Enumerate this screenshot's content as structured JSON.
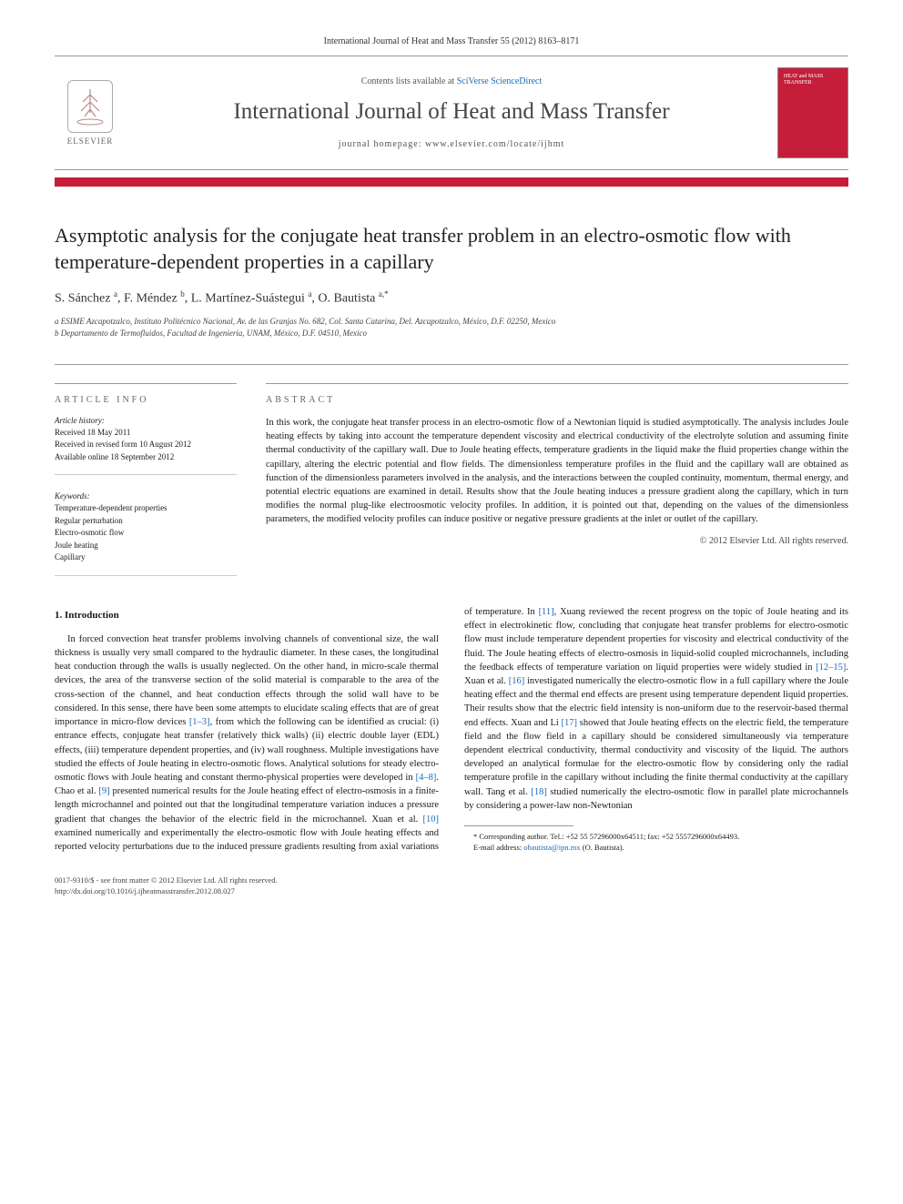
{
  "journal_ref": "International Journal of Heat and Mass Transfer 55 (2012) 8163–8171",
  "header": {
    "contents_prefix": "Contents lists available at ",
    "contents_link": "SciVerse ScienceDirect",
    "journal_name": "International Journal of Heat and Mass Transfer",
    "homepage_label": "journal homepage: ",
    "homepage_url": "www.elsevier.com/locate/ijhmt",
    "elsevier_label": "ELSEVIER",
    "cover_title": "HEAT and MASS TRANSFER"
  },
  "accent_color": "#c41e3a",
  "title": "Asymptotic analysis for the conjugate heat transfer problem in an electro-osmotic flow with temperature-dependent properties in a capillary",
  "authors_html": "S. Sánchez <sup>a</sup>, F. Méndez <sup>b</sup>, L. Martínez-Suástegui <sup>a</sup>, O. Bautista <sup>a,*</sup>",
  "affiliations": [
    "a ESIME Azcapotzalco, Instituto Politécnico Nacional, Av. de las Granjas No. 682, Col. Santa Catarina, Del. Azcapotzalco, México, D.F. 02250, Mexico",
    "b Departamento de Termofluidos, Facultad de Ingeniería, UNAM, México, D.F. 04510, Mexico"
  ],
  "article_info": {
    "heading": "ARTICLE INFO",
    "history_label": "Article history:",
    "history": [
      "Received 18 May 2011",
      "Received in revised form 10 August 2012",
      "Available online 18 September 2012"
    ],
    "keywords_label": "Keywords:",
    "keywords": [
      "Temperature-dependent properties",
      "Regular perturbation",
      "Electro-osmotic flow",
      "Joule heating",
      "Capillary"
    ]
  },
  "abstract": {
    "heading": "ABSTRACT",
    "text": "In this work, the conjugate heat transfer process in an electro-osmotic flow of a Newtonian liquid is studied asymptotically. The analysis includes Joule heating effects by taking into account the temperature dependent viscosity and electrical conductivity of the electrolyte solution and assuming finite thermal conductivity of the capillary wall. Due to Joule heating effects, temperature gradients in the liquid make the fluid properties change within the capillary, altering the electric potential and flow fields. The dimensionless temperature profiles in the fluid and the capillary wall are obtained as function of the dimensionless parameters involved in the analysis, and the interactions between the coupled continuity, momentum, thermal energy, and potential electric equations are examined in detail. Results show that the Joule heating induces a pressure gradient along the capillary, which in turn modifies the normal plug-like electroosmotic velocity profiles. In addition, it is pointed out that, depending on the values of the dimensionless parameters, the modified velocity profiles can induce positive or negative pressure gradients at the inlet or outlet of the capillary.",
    "copyright": "© 2012 Elsevier Ltd. All rights reserved."
  },
  "body": {
    "section_heading": "1. Introduction",
    "col1_p1": "In forced convection heat transfer problems involving channels of conventional size, the wall thickness is usually very small compared to the hydraulic diameter. In these cases, the longitudinal heat conduction through the walls is usually neglected. On the other hand, in micro-scale thermal devices, the area of the transverse section of the solid material is comparable to the area of the cross-section of the channel, and heat conduction effects through the solid wall have to be considered. In this sense, there have been some attempts to elucidate scaling effects that are of great importance in micro-flow devices ",
    "cite1": "[1–3]",
    "col1_p1b": ", from which the following can be identified as crucial: (i) entrance effects, conjugate heat transfer (relatively thick walls) (ii) electric double layer (EDL) effects, (iii) temperature dependent properties, and (iv) wall roughness. Multiple investigations have studied the effects of Joule heating in electro-osmotic flows. Analytical solutions for steady electro-osmotic flows with Joule heating and constant thermo-physical properties were developed in ",
    "cite2": "[4–8]",
    "col1_p1c": ". Chao et al. ",
    "cite3": "[9]",
    "col1_p1d": " presented numerical results for the Joule heating effect of electro-osmosis in a finite-length microchannel and pointed out that the longitudinal temperature variation induces a pressure gradient",
    "col2_p1a": "that changes the behavior of the electric field in the microchannel. Xuan et al. ",
    "cite4": "[10]",
    "col2_p1b": " examined numerically and experimentally the electro-osmotic flow with Joule heating effects and reported velocity perturbations due to the induced pressure gradients resulting from axial variations of temperature. In ",
    "cite5": "[11]",
    "col2_p1c": ", Xuang reviewed the recent progress on the topic of Joule heating and its effect in electrokinetic flow, concluding that conjugate heat transfer problems for electro-osmotic flow must include temperature dependent properties for viscosity and electrical conductivity of the fluid. The Joule heating effects of electro-osmosis in liquid-solid coupled microchannels, including the feedback effects of temperature variation on liquid properties were widely studied in ",
    "cite6": "[12–15]",
    "col2_p1d": ". Xuan et al. ",
    "cite7": "[16]",
    "col2_p1e": " investigated numerically the electro-osmotic flow in a full capillary where the Joule heating effect and the thermal end effects are present using temperature dependent liquid properties. Their results show that the electric field intensity is non-uniform due to the reservoir-based thermal end effects. Xuan and Li ",
    "cite8": "[17]",
    "col2_p1f": " showed that Joule heating effects on the electric field, the temperature field and the flow field in a capillary should be considered simultaneously via temperature dependent electrical conductivity, thermal conductivity and viscosity of the liquid. The authors developed an analytical formulae for the electro-osmotic flow by considering only the radial temperature profile in the capillary without including the finite thermal conductivity at the capillary wall. Tang et al. ",
    "cite9": "[18]",
    "col2_p1g": " studied numerically the electro-osmotic flow in parallel plate microchannels by considering a power-law non-Newtonian"
  },
  "footnotes": {
    "corr": "* Corresponding author. Tel.: +52 55 57296000x64511; fax: +52 5557296000x64493.",
    "email_label": "E-mail address: ",
    "email": "obautista@ipn.mx",
    "email_suffix": " (O. Bautista)."
  },
  "footer": {
    "line1": "0017-9310/$ - see front matter © 2012 Elsevier Ltd. All rights reserved.",
    "line2": "http://dx.doi.org/10.1016/j.ijheatmasstransfer.2012.08.027"
  }
}
